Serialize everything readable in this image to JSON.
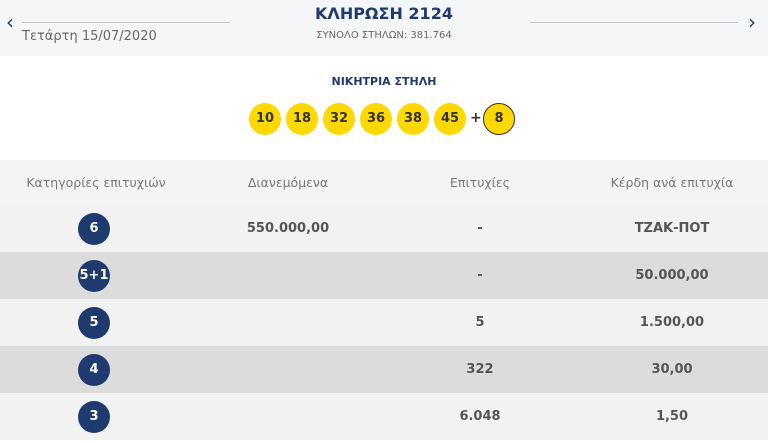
{
  "header": {
    "date": "Τετάρτη 15/07/2020",
    "title": "ΚΛΗΡΩΣΗ 2124",
    "subtitle": "ΣΥΝΟΛΟ ΣΤΗΛΩΝ: 381.764"
  },
  "winning": {
    "label": "ΝΙΚΗΤΡΙΑ ΣΤΗΛΗ",
    "numbers": [
      10,
      18,
      32,
      36,
      38,
      45
    ],
    "plus": "+",
    "bonus": 8
  },
  "table": {
    "columns": [
      "Κατηγορίες επιτυχιών",
      "Διανεμόμενα",
      "Επιτυχίες",
      "Κέρδη ανά επιτυχία"
    ],
    "rows": [
      {
        "category": "6",
        "distributed": "550.000,00",
        "winners": "-",
        "prize": "ΤΖΑΚ-ΠΟΤ"
      },
      {
        "category": "5+1",
        "winners": "-",
        "prize": "50.000,00"
      },
      {
        "category": "5",
        "winners": "5",
        "prize": "1.500,00"
      },
      {
        "category": "4",
        "winners": "322",
        "prize": "30,00"
      },
      {
        "category": "3",
        "winners": "6.048",
        "prize": "1,50"
      }
    ]
  }
}
